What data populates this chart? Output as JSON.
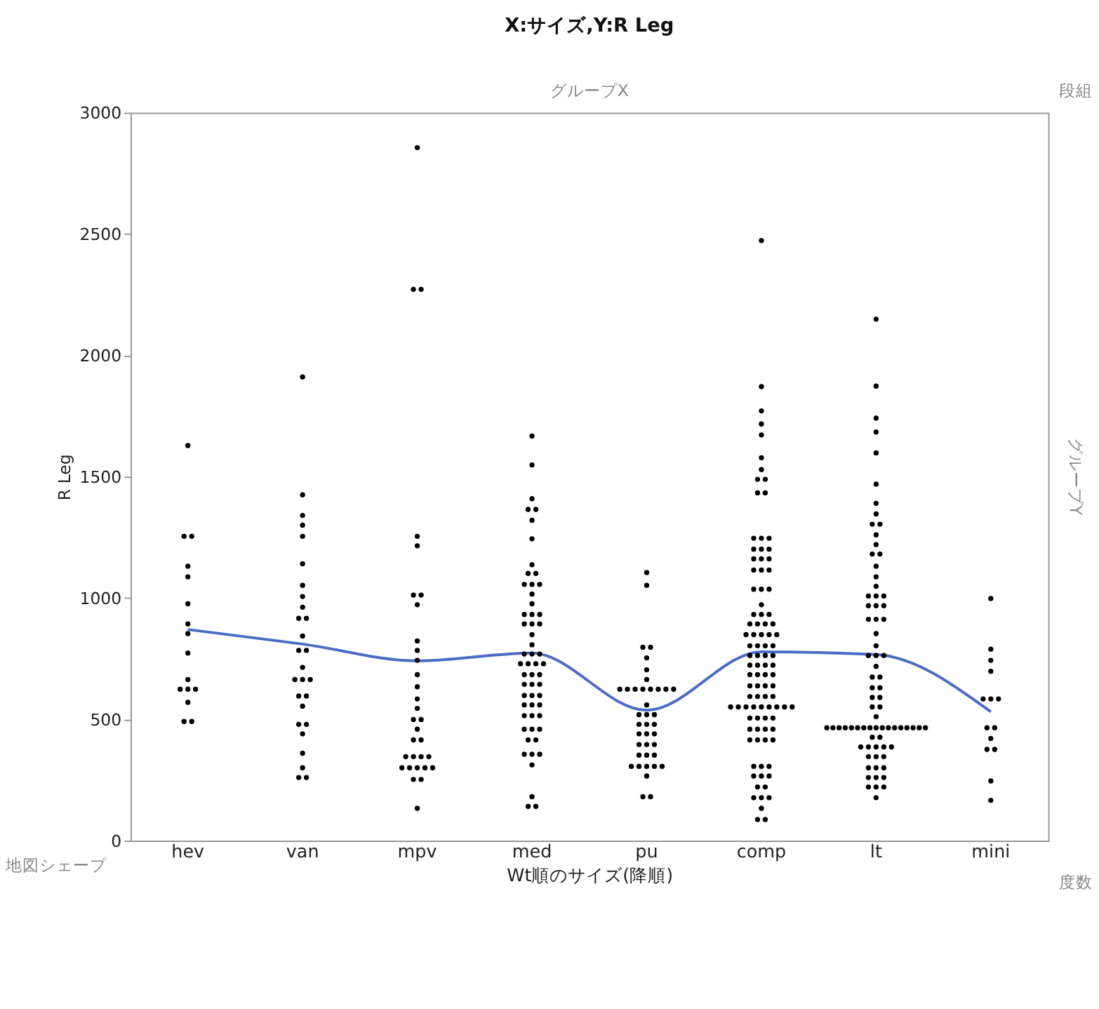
{
  "chart_data": {
    "type": "scatter",
    "title": "X:サイズ,Y:R Leg",
    "xlabel": "Wt順のサイズ(降順)",
    "ylabel": "R Leg",
    "annotations": [
      "グループX",
      "段組",
      "グループY",
      "地図シェープ",
      "度数"
    ],
    "categories": [
      "hev",
      "van",
      "mpv",
      "med",
      "pu",
      "comp",
      "lt",
      "mini"
    ],
    "ylim": [
      0,
      3000
    ],
    "yticks": [
      0,
      500,
      1000,
      1500,
      2000,
      2500,
      3000
    ],
    "grid": false,
    "marker": "circle",
    "series": [
      {
        "color": "#000000",
        "x": [
          "hev",
          "hev",
          "hev",
          "hev",
          "hev",
          "hev",
          "hev",
          "hev",
          "hev",
          "hev",
          "hev",
          "hev",
          "hev",
          "hev",
          "hev",
          "hev"
        ],
        "values": [
          1628,
          1254,
          1254,
          1131,
          1087,
          976,
          893,
          853,
          773,
          664,
          624,
          624,
          624,
          570,
          491,
          491
        ]
      },
      {
        "color": "#000000",
        "x": [
          "van",
          "van",
          "van",
          "van",
          "van",
          "van",
          "van",
          "van",
          "van",
          "van",
          "van",
          "van",
          "van",
          "van",
          "van",
          "van",
          "van",
          "van",
          "van",
          "van",
          "van",
          "van",
          "van",
          "van",
          "van",
          "van",
          "van",
          "van"
        ],
        "values": [
          1911,
          1425,
          1340,
          1300,
          1254,
          1141,
          1052,
          1006,
          962,
          916,
          916,
          843,
          784,
          784,
          714,
          664,
          664,
          664,
          596,
          596,
          554,
          479,
          479,
          440,
          360,
          300,
          260,
          260
        ]
      },
      {
        "color": "#000000",
        "x": [
          "mpv",
          "mpv",
          "mpv",
          "mpv",
          "mpv",
          "mpv",
          "mpv",
          "mpv",
          "mpv",
          "mpv",
          "mpv",
          "mpv",
          "mpv",
          "mpv",
          "mpv",
          "mpv",
          "mpv",
          "mpv",
          "mpv",
          "mpv",
          "mpv",
          "mpv",
          "mpv",
          "mpv",
          "mpv",
          "mpv",
          "mpv",
          "mpv",
          "mpv",
          "mpv",
          "mpv",
          "mpv"
        ],
        "values": [
          2856,
          2272,
          2272,
          1254,
          1215,
          1012,
          1012,
          972,
          823,
          784,
          743,
          684,
          634,
          584,
          545,
          499,
          499,
          459,
          415,
          415,
          346,
          346,
          346,
          346,
          300,
          300,
          300,
          300,
          300,
          252,
          252,
          133
        ]
      },
      {
        "color": "#000000",
        "x": [
          "med",
          "med",
          "med",
          "med",
          "med",
          "med",
          "med",
          "med",
          "med",
          "med",
          "med",
          "med",
          "med",
          "med",
          "med",
          "med",
          "med",
          "med",
          "med",
          "med",
          "med",
          "med",
          "med",
          "med",
          "med",
          "med",
          "med",
          "med",
          "med",
          "med",
          "med",
          "med",
          "med",
          "med",
          "med",
          "med",
          "med",
          "med",
          "med",
          "med",
          "med",
          "med",
          "med",
          "med",
          "med",
          "med",
          "med",
          "med",
          "med",
          "med",
          "med",
          "med",
          "med",
          "med",
          "med",
          "med",
          "med"
        ],
        "values": [
          1667,
          1548,
          1409,
          1365,
          1365,
          1320,
          1244,
          1137,
          1101,
          1101,
          1056,
          1056,
          1056,
          1016,
          976,
          932,
          932,
          932,
          893,
          893,
          893,
          849,
          807,
          769,
          769,
          769,
          729,
          729,
          729,
          729,
          684,
          684,
          684,
          644,
          644,
          644,
          598,
          598,
          598,
          559,
          559,
          559,
          515,
          515,
          515,
          459,
          459,
          459,
          415,
          415,
          356,
          356,
          356,
          312,
          181,
          141,
          141
        ]
      },
      {
        "color": "#000000",
        "x": [
          "pu",
          "pu",
          "pu",
          "pu",
          "pu",
          "pu",
          "pu",
          "pu",
          "pu",
          "pu",
          "pu",
          "pu",
          "pu",
          "pu",
          "pu",
          "pu",
          "pu",
          "pu",
          "pu",
          "pu",
          "pu",
          "pu",
          "pu",
          "pu",
          "pu",
          "pu",
          "pu",
          "pu",
          "pu",
          "pu",
          "pu",
          "pu",
          "pu",
          "pu",
          "pu",
          "pu",
          "pu",
          "pu",
          "pu"
        ],
        "values": [
          1105,
          1052,
          797,
          797,
          753,
          704,
          664,
          624,
          624,
          624,
          624,
          624,
          624,
          624,
          624,
          559,
          519,
          519,
          519,
          479,
          479,
          479,
          440,
          440,
          440,
          396,
          396,
          396,
          352,
          352,
          352,
          306,
          306,
          306,
          306,
          306,
          266,
          181,
          181
        ]
      },
      {
        "color": "#000000",
        "x": [
          "comp",
          "comp",
          "comp",
          "comp",
          "comp",
          "comp",
          "comp",
          "comp",
          "comp",
          "comp",
          "comp",
          "comp",
          "comp",
          "comp",
          "comp",
          "comp",
          "comp",
          "comp",
          "comp",
          "comp",
          "comp",
          "comp",
          "comp",
          "comp",
          "comp",
          "comp",
          "comp",
          "comp",
          "comp",
          "comp",
          "comp",
          "comp",
          "comp",
          "comp",
          "comp",
          "comp",
          "comp",
          "comp",
          "comp",
          "comp",
          "comp",
          "comp",
          "comp",
          "comp",
          "comp",
          "comp",
          "comp",
          "comp",
          "comp",
          "comp",
          "comp",
          "comp",
          "comp",
          "comp",
          "comp",
          "comp",
          "comp",
          "comp",
          "comp",
          "comp",
          "comp",
          "comp",
          "comp",
          "comp",
          "comp",
          "comp",
          "comp",
          "comp",
          "comp",
          "comp",
          "comp",
          "comp",
          "comp",
          "comp",
          "comp",
          "comp",
          "comp",
          "comp",
          "comp",
          "comp",
          "comp",
          "comp",
          "comp",
          "comp",
          "comp",
          "comp",
          "comp",
          "comp",
          "comp",
          "comp",
          "comp",
          "comp",
          "comp",
          "comp",
          "comp",
          "comp",
          "comp",
          "comp"
        ],
        "values": [
          2473,
          1871,
          1771,
          1717,
          1672,
          1578,
          1529,
          1489,
          1489,
          1433,
          1433,
          1246,
          1246,
          1246,
          1201,
          1201,
          1201,
          1161,
          1161,
          1161,
          1115,
          1115,
          1115,
          1036,
          1036,
          1036,
          972,
          932,
          932,
          932,
          893,
          893,
          893,
          893,
          849,
          849,
          849,
          849,
          849,
          803,
          803,
          803,
          803,
          763,
          763,
          763,
          763,
          723,
          723,
          723,
          723,
          684,
          684,
          684,
          684,
          638,
          638,
          638,
          638,
          594,
          594,
          594,
          594,
          551,
          551,
          551,
          551,
          551,
          551,
          551,
          551,
          551,
          505,
          505,
          505,
          505,
          459,
          459,
          459,
          459,
          415,
          415,
          415,
          415,
          306,
          306,
          306,
          266,
          266,
          266,
          221,
          221,
          177,
          177,
          177,
          133,
          87,
          87
        ]
      },
      {
        "color": "#000000",
        "x": [
          "lt",
          "lt",
          "lt",
          "lt",
          "lt",
          "lt",
          "lt",
          "lt",
          "lt",
          "lt",
          "lt",
          "lt",
          "lt",
          "lt",
          "lt",
          "lt",
          "lt",
          "lt",
          "lt",
          "lt",
          "lt",
          "lt",
          "lt",
          "lt",
          "lt",
          "lt",
          "lt",
          "lt",
          "lt",
          "lt",
          "lt",
          "lt",
          "lt",
          "lt",
          "lt",
          "lt",
          "lt",
          "lt",
          "lt",
          "lt",
          "lt",
          "lt",
          "lt",
          "lt",
          "lt",
          "lt",
          "lt",
          "lt",
          "lt",
          "lt",
          "lt",
          "lt",
          "lt",
          "lt",
          "lt",
          "lt",
          "lt",
          "lt",
          "lt",
          "lt",
          "lt",
          "lt",
          "lt",
          "lt",
          "lt",
          "lt",
          "lt",
          "lt",
          "lt",
          "lt",
          "lt",
          "lt",
          "lt",
          "lt",
          "lt",
          "lt",
          "lt",
          "lt"
        ],
        "values": [
          2149,
          1873,
          1741,
          1684,
          1598,
          1469,
          1390,
          1346,
          1304,
          1304,
          1260,
          1220,
          1181,
          1181,
          1131,
          1087,
          1048,
          1008,
          1008,
          1008,
          968,
          968,
          968,
          912,
          912,
          912,
          853,
          803,
          763,
          763,
          763,
          718,
          674,
          674,
          630,
          630,
          590,
          590,
          551,
          551,
          511,
          465,
          465,
          465,
          465,
          465,
          465,
          465,
          465,
          465,
          465,
          465,
          465,
          465,
          465,
          465,
          465,
          465,
          426,
          426,
          386,
          386,
          386,
          386,
          386,
          346,
          346,
          346,
          300,
          300,
          300,
          260,
          260,
          260,
          221,
          221,
          221,
          177
        ]
      },
      {
        "color": "#000000",
        "x": [
          "mini",
          "mini",
          "mini",
          "mini",
          "mini",
          "mini",
          "mini",
          "mini",
          "mini",
          "mini",
          "mini",
          "mini",
          "mini",
          "mini"
        ],
        "values": [
          998,
          789,
          743,
          698,
          584,
          584,
          584,
          465,
          465,
          421,
          376,
          376,
          246,
          166
        ]
      },
      {
        "type": "line",
        "marker": "none",
        "color": "#4a6cc3",
        "values": [
          870,
          810,
          741,
          773,
          537,
          778,
          767,
          531
        ]
      }
    ]
  }
}
